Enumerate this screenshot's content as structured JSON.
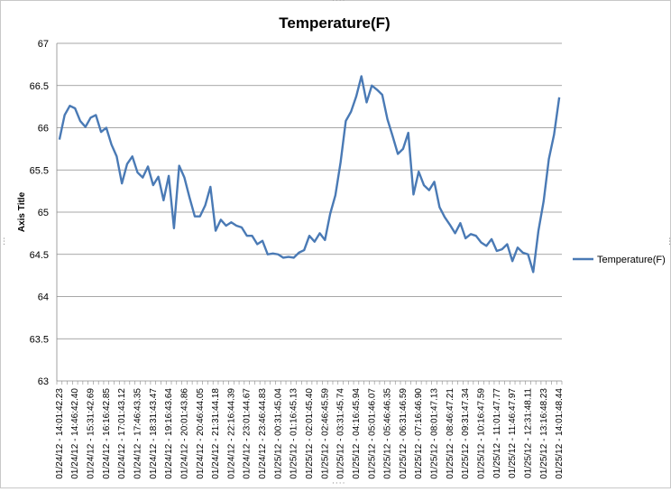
{
  "chart_data": {
    "type": "line",
    "title": "Temperature(F)",
    "xlabel": "",
    "ylabel": "Axis Title",
    "ylim": [
      63,
      67
    ],
    "yticks": [
      63,
      63.5,
      64,
      64.5,
      65,
      65.5,
      66,
      66.5,
      67
    ],
    "ytick_labels": [
      "63",
      "63.5",
      "64",
      "64.5",
      "65",
      "65.5",
      "66",
      "66.5",
      "67"
    ],
    "grid": true,
    "legend": "right",
    "xtick_labels": [
      "01/24/12 - 14:01:42.23",
      "01/24/12 - 14:46:42.40",
      "01/24/12 - 15:31:42.69",
      "01/24/12 - 16:16:42.85",
      "01/24/12 - 17:01:43.12",
      "01/24/12 - 17:46:43.35",
      "01/24/12 - 18:31:43.47",
      "01/24/12 - 19:16:43.64",
      "01/24/12 - 20:01:43.86",
      "01/24/12 - 20:46:44.05",
      "01/24/12 - 21:31:44.18",
      "01/24/12 - 22:16:44.39",
      "01/24/12 - 23:01:44.67",
      "01/24/12 - 23:46:44.83",
      "01/25/12 - 00:31:45.04",
      "01/25/12 - 01:16:45.13",
      "01/25/12 - 02:01:45.40",
      "01/25/12 - 02:46:45.59",
      "01/25/12 - 03:31:45.74",
      "01/25/12 - 04:16:45.94",
      "01/25/12 - 05:01:46.07",
      "01/25/12 - 05:46:46.35",
      "01/25/12 - 06:31:46.59",
      "01/25/12 - 07:16:46.90",
      "01/25/12 - 08:01:47.13",
      "01/25/12 - 08:46:47.21",
      "01/25/12 - 09:31:47.34",
      "01/25/12 - 10:16:47.59",
      "01/25/12 - 11:01:47.77",
      "01/25/12 - 11:46:47.97",
      "01/25/12 - 12:31:48.11",
      "01/25/12 - 13:16:48.23",
      "01/25/12 - 14:01:48.44"
    ],
    "series": [
      {
        "name": "Temperature(F)",
        "color": "#4a7ab5",
        "values": [
          65.86,
          66.15,
          66.26,
          66.23,
          66.08,
          66.01,
          66.12,
          66.15,
          65.95,
          66.0,
          65.8,
          65.66,
          65.34,
          65.57,
          65.66,
          65.47,
          65.41,
          65.54,
          65.32,
          65.42,
          65.14,
          65.43,
          64.81,
          65.55,
          65.41,
          65.17,
          64.95,
          64.95,
          65.08,
          65.3,
          64.78,
          64.91,
          64.84,
          64.88,
          64.84,
          64.82,
          64.72,
          64.72,
          64.62,
          64.66,
          64.5,
          64.51,
          64.5,
          64.46,
          64.47,
          64.46,
          64.52,
          64.55,
          64.72,
          64.65,
          64.75,
          64.67,
          64.98,
          65.2,
          65.59,
          66.08,
          66.19,
          66.37,
          66.61,
          66.3,
          66.5,
          66.45,
          66.39,
          66.1,
          65.9,
          65.69,
          65.75,
          65.94,
          65.21,
          65.48,
          65.32,
          65.26,
          65.36,
          65.06,
          64.94,
          64.85,
          64.75,
          64.87,
          64.69,
          64.74,
          64.72,
          64.64,
          64.6,
          64.68,
          64.54,
          64.56,
          64.62,
          64.42,
          64.58,
          64.52,
          64.5,
          64.29,
          64.78,
          65.13,
          65.63,
          65.92,
          66.36
        ]
      }
    ]
  }
}
